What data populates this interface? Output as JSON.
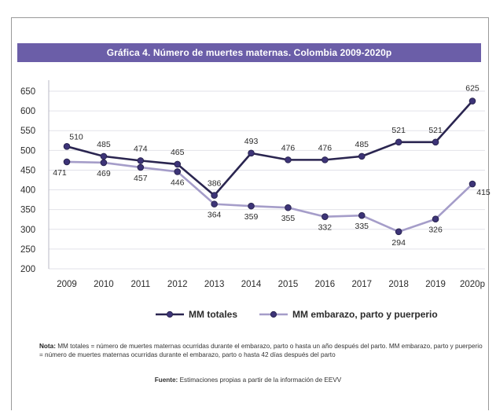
{
  "header": {
    "title": "Gráfica 4. Número de muertes maternas. Colombia 2009-2020p"
  },
  "chart_data": {
    "type": "line",
    "title": "Gráfica 4. Número de muertes maternas. Colombia 2009-2020p",
    "x": [
      "2009",
      "2010",
      "2011",
      "2012",
      "2013",
      "2014",
      "2015",
      "2016",
      "2017",
      "2018",
      "2019",
      "2020p"
    ],
    "ylim": [
      200,
      650
    ],
    "yticks": [
      200,
      250,
      300,
      350,
      400,
      450,
      500,
      550,
      600,
      650
    ],
    "grid": true,
    "legend_position": "bottom",
    "series": [
      {
        "name": "MM totales",
        "color": "#2a2550",
        "values": [
          510,
          485,
          474,
          465,
          386,
          493,
          476,
          476,
          485,
          521,
          521,
          625
        ]
      },
      {
        "name": "MM embarazo, parto y puerperio",
        "color": "#a59dc9",
        "values": [
          471,
          469,
          457,
          446,
          364,
          359,
          355,
          332,
          335,
          294,
          326,
          415
        ]
      }
    ]
  },
  "note": {
    "label": "Nota:",
    "text": " MM totales = número de muertes maternas ocurridas durante el embarazo, parto o hasta un año después del parto. MM embarazo, parto y puerperio = número de muertes maternas ocurridas durante el embarazo, parto o hasta 42 días después del parto"
  },
  "source": {
    "label": "Fuente:",
    "text": " Estimaciones propias a partir de la información de EEVV"
  }
}
